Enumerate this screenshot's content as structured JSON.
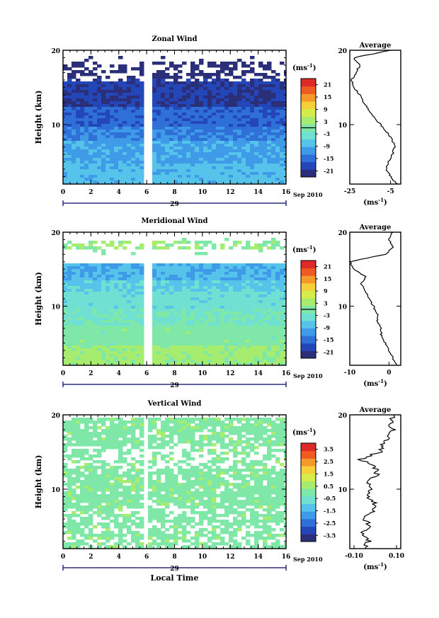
{
  "chart_data": [
    {
      "type": "heatmap",
      "title": "Zonal Wind",
      "ylabel": "Height (km)",
      "xlabel": "",
      "x_ticks": [
        "0",
        "2",
        "4",
        "6",
        "8",
        "10",
        "12",
        "14",
        "16"
      ],
      "y_ticks": [
        "10",
        "20"
      ],
      "xlim": [
        0,
        16
      ],
      "ylim": [
        2,
        20
      ],
      "date_marker": "29",
      "date_suffix": "Sep 2010",
      "data_gap_hours": [
        5.7,
        6.1
      ],
      "colorbar": {
        "unit_prefix": "(ms",
        "unit_exp": "-1",
        "unit_suffix": ")",
        "ticks": [
          "21",
          "15",
          "9",
          "3",
          "-3",
          "-9",
          "-15",
          "-21"
        ],
        "range": [
          -24,
          24
        ],
        "contour_level": 0
      },
      "layers": [
        {
          "height_range": [
            2,
            5
          ],
          "value": -8
        },
        {
          "height_range": [
            5,
            8
          ],
          "value": -10
        },
        {
          "height_range": [
            8,
            10
          ],
          "value": -13
        },
        {
          "height_range": [
            10,
            12.5
          ],
          "value": -16
        },
        {
          "height_range": [
            12.5,
            16.5
          ],
          "value": -20
        },
        {
          "height_range": [
            16.5,
            18.5
          ],
          "value": -24
        }
      ],
      "profile": {
        "title": "Average",
        "xlabel_prefix": "(ms",
        "xlabel_exp": "-1",
        "xlabel_suffix": ")",
        "x_ticks": [
          "-25",
          "-5"
        ],
        "xlim": [
          -25,
          0
        ],
        "heights": [
          2,
          3,
          4,
          5,
          6,
          7,
          8,
          9,
          10,
          11,
          12,
          13,
          14,
          15,
          16,
          17,
          18,
          19,
          20
        ],
        "values": [
          -2,
          -5,
          -7,
          -6,
          -4,
          -3,
          -4,
          -7,
          -10,
          -13,
          -16,
          -18,
          -20,
          -23,
          -24,
          -22,
          -20,
          -23,
          -5
        ]
      }
    },
    {
      "type": "heatmap",
      "title": "Meridional Wind",
      "ylabel": "Height (km)",
      "xlabel": "",
      "x_ticks": [
        "0",
        "2",
        "4",
        "6",
        "8",
        "10",
        "12",
        "14",
        "16"
      ],
      "y_ticks": [
        "10",
        "20"
      ],
      "xlim": [
        0,
        16
      ],
      "ylim": [
        2,
        20
      ],
      "date_marker": "29",
      "date_suffix": "Sep 2010",
      "data_gap_hours": [
        5.7,
        6.1
      ],
      "colorbar": {
        "unit_prefix": "(ms",
        "unit_exp": "-1",
        "unit_suffix": ")",
        "ticks": [
          "21",
          "15",
          "9",
          "3",
          "-3",
          "-9",
          "-15",
          "-21"
        ],
        "range": [
          -24,
          24
        ],
        "contour_level": 0
      },
      "layers": [
        {
          "height_range": [
            2,
            5
          ],
          "value": 3
        },
        {
          "height_range": [
            5,
            7.5
          ],
          "value": 0
        },
        {
          "height_range": [
            7.5,
            10
          ],
          "value": -2
        },
        {
          "height_range": [
            10,
            12
          ],
          "value": -4
        },
        {
          "height_range": [
            12,
            13.5
          ],
          "value": -6
        },
        {
          "height_range": [
            13.5,
            16
          ],
          "value": -9
        },
        {
          "height_range": [
            18,
            19
          ],
          "value": 2
        }
      ],
      "profile": {
        "title": "Average",
        "xlabel_prefix": "(ms",
        "xlabel_exp": "-1",
        "xlabel_suffix": ")",
        "x_ticks": [
          "-10",
          "0"
        ],
        "xlim": [
          -10,
          3
        ],
        "heights": [
          2,
          3,
          4,
          5,
          6,
          7,
          8,
          9,
          10,
          11,
          12,
          13,
          14,
          15,
          16,
          17,
          18,
          19,
          20
        ],
        "values": [
          2,
          1,
          0,
          -1,
          -2,
          -2,
          -3,
          -3,
          -4,
          -5,
          -6,
          -7,
          -6,
          -9,
          -10,
          -1,
          1,
          0,
          1
        ]
      }
    },
    {
      "type": "heatmap",
      "title": "Vertical Wind",
      "ylabel": "Height (km)",
      "xlabel": "Local Time",
      "x_ticks": [
        "0",
        "2",
        "4",
        "6",
        "8",
        "10",
        "12",
        "14",
        "16"
      ],
      "y_ticks": [
        "10",
        "20"
      ],
      "xlim": [
        0,
        16
      ],
      "ylim": [
        2,
        20
      ],
      "date_marker": "29",
      "date_suffix": "Sep 2010",
      "data_gap_hours": [
        5.6,
        6.0
      ],
      "colorbar": {
        "unit_prefix": "(ms",
        "unit_exp": "-1",
        "unit_suffix": ")",
        "ticks": [
          "3.5",
          "2.5",
          "1.5",
          "0.5",
          "-0.5",
          "-1.5",
          "-2.5",
          "-3.5"
        ],
        "range": [
          -4,
          4
        ],
        "contour_level": null
      },
      "layers": [
        {
          "height_range": [
            2,
            20
          ],
          "value": 0.05
        }
      ],
      "profile": {
        "title": "Average",
        "xlabel_prefix": "(ms",
        "xlabel_exp": "-1",
        "xlabel_suffix": ")",
        "x_ticks": [
          "-0.10",
          "0.10"
        ],
        "xlim": [
          -0.12,
          0.12
        ],
        "heights": [
          2,
          3,
          4,
          5,
          6,
          7,
          8,
          9,
          10,
          11,
          12,
          13,
          14,
          15,
          16,
          17,
          18,
          19,
          20
        ],
        "values": [
          -0.05,
          -0.03,
          -0.06,
          -0.02,
          -0.05,
          -0.01,
          0.0,
          -0.03,
          -0.02,
          -0.04,
          0.01,
          0.0,
          -0.07,
          0.02,
          0.03,
          0.06,
          0.08,
          0.07,
          0.09
        ]
      }
    }
  ],
  "colors": {
    "scale": [
      "#2b2f7a",
      "#2346b8",
      "#2f6fd8",
      "#3f9ae8",
      "#56c4ea",
      "#6fe0d2",
      "#7fe8a8",
      "#a6ec6e",
      "#d6ec4a",
      "#f5d038",
      "#f59a2a",
      "#ee5a22",
      "#dc2a28"
    ],
    "contour": "#000000",
    "axis": "#000000",
    "time_line": "#2b2f7a"
  }
}
